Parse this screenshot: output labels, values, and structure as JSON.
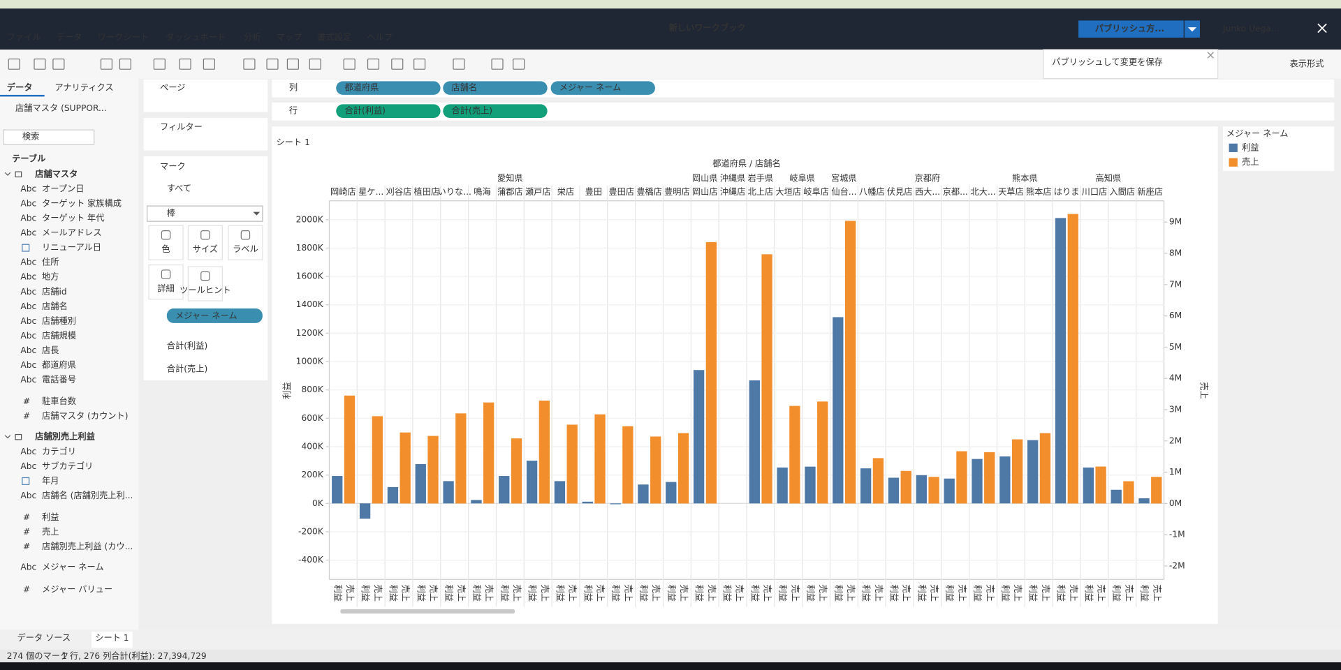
{
  "ui": {
    "menus": [
      "ファイル",
      "データ",
      "ワークシート",
      "ダッシュボード",
      "分析",
      "マップ",
      "書式設定",
      "ヘルプ"
    ],
    "window_title": "新しいワークブック",
    "publish_button": "パブリッシュ方...",
    "user": "Junko Uega...",
    "publish_tooltip": "パブリッシュして変更を保存",
    "show_me": "表示形式",
    "data_tabs": [
      "データ",
      "アナリティクス"
    ],
    "data_source": "店舗マスタ (SUPPOR...",
    "search": "検索",
    "tables_heading": "テーブル",
    "icons": {
      "text": "Abc",
      "number": "#"
    },
    "tables": [
      {
        "name": "店舗マスタ",
        "fields": [
          {
            "label": "オープン日",
            "kind": "text"
          },
          {
            "label": "ターゲット 家族構成",
            "kind": "text"
          },
          {
            "label": "ターゲット 年代",
            "kind": "text"
          },
          {
            "label": "メールアドレス",
            "kind": "text"
          },
          {
            "label": "リニューアル日",
            "kind": "date"
          },
          {
            "label": "住所",
            "kind": "text"
          },
          {
            "label": "地方",
            "kind": "text"
          },
          {
            "label": "店舗id",
            "kind": "text"
          },
          {
            "label": "店舗名",
            "kind": "text"
          },
          {
            "label": "店舗種別",
            "kind": "text"
          },
          {
            "label": "店舗規模",
            "kind": "text"
          },
          {
            "label": "店長",
            "kind": "text"
          },
          {
            "label": "都道府県",
            "kind": "text"
          },
          {
            "label": "電話番号",
            "kind": "text"
          },
          {
            "label": "駐車台数",
            "kind": "number"
          },
          {
            "label": "店舗マスタ (カウント)",
            "kind": "number"
          }
        ]
      },
      {
        "name": "店舗別売上利益",
        "fields": [
          {
            "label": "カテゴリ",
            "kind": "text"
          },
          {
            "label": "サブカテゴリ",
            "kind": "text"
          },
          {
            "label": "年月",
            "kind": "date"
          },
          {
            "label": "店舗名 (店舗別売上利...",
            "kind": "text"
          },
          {
            "label": "利益",
            "kind": "number"
          },
          {
            "label": "売上",
            "kind": "number"
          },
          {
            "label": "店舗別売上利益 (カウ...",
            "kind": "number"
          }
        ]
      }
    ],
    "extra_fields": [
      {
        "label": "メジャー ネーム",
        "kind": "text"
      },
      {
        "label": "メジャー バリュー",
        "kind": "number"
      }
    ],
    "cards": {
      "pages": "ページ",
      "filters": "フィルター",
      "marks": "マーク",
      "all": "すべて",
      "mark_type": "棒",
      "buttons": [
        "色",
        "サイズ",
        "ラベル",
        "詳細",
        "ツールヒント"
      ],
      "marks_pills": [
        "メジャー ネーム",
        "合計(利益)",
        "合計(売上)"
      ]
    },
    "columns_shelf": {
      "label": "列",
      "pills": [
        "都道府県",
        "店舗名",
        "メジャー ネーム"
      ]
    },
    "rows_shelf": {
      "label": "行",
      "pills": [
        "合計(利益)",
        "合計(売上)"
      ]
    },
    "sheet_title": "シート 1",
    "tabs": [
      "データ ソース",
      "シート 1"
    ],
    "status": [
      "274 個のマーク",
      "1 行, 276 列",
      "合計(利益): 27,394,729"
    ]
  },
  "chart_data": {
    "type": "bar",
    "header_title": "都道府県 / 店舗名",
    "legend_title": "メジャー ネーム",
    "y_label": "利益",
    "y2_label": "売上",
    "prefectures": [
      "愛知県",
      null,
      null,
      null,
      null,
      null,
      null,
      null,
      null,
      null,
      null,
      null,
      null,
      "岡山県",
      "沖縄県",
      "岩手県",
      "岐阜県",
      null,
      "宮城県",
      "京都府",
      null,
      null,
      null,
      null,
      "熊本県",
      null,
      "高知県",
      null,
      null,
      null
    ],
    "categories": [
      "岡崎店",
      "星ケ...",
      "刈谷店",
      "植田店",
      "いりな...",
      "鳴海",
      "蒲郡店",
      "瀬戸店",
      "栄店",
      "豊田",
      "豊田店",
      "豊橋店",
      "豊明店",
      "岡山店",
      "沖縄店",
      "北上店",
      "大垣店",
      "岐阜店",
      "仙台...",
      "八幡店",
      "伏見店",
      "西大...",
      "京都...",
      "北大...",
      "天草店",
      "熊本店",
      "はりま",
      "川口店",
      "入間店",
      "新座店"
    ],
    "series": [
      {
        "name": "利益",
        "color": "#4e79a7",
        "values": [
          193000,
          -108000,
          115000,
          277000,
          157000,
          24000,
          193000,
          301000,
          157000,
          12000,
          -6000,
          133000,
          151000,
          940000,
          null,
          867000,
          253000,
          259000,
          1313000,
          247000,
          181000,
          199000,
          175000,
          313000,
          331000,
          446000,
          2012000,
          253000,
          96000,
          36000
        ]
      },
      {
        "name": "売上",
        "color": "#f28e2b",
        "axis": "y2",
        "values": [
          3450000,
          2790000,
          2270000,
          2160000,
          2880000,
          3230000,
          2080000,
          3290000,
          2520000,
          2850000,
          2470000,
          2140000,
          2250000,
          8360000,
          null,
          7970000,
          3120000,
          3260000,
          9040000,
          1450000,
          1040000,
          850000,
          1670000,
          1640000,
          2050000,
          2250000,
          9260000,
          1180000,
          710000,
          850000
        ]
      }
    ],
    "ylim": [
      -536000,
      2133000
    ],
    "yticks": [
      {
        "value": -400000,
        "label": "-400K"
      },
      {
        "value": -200000,
        "label": "-200K"
      },
      {
        "value": 0,
        "label": "0K"
      },
      {
        "value": 200000,
        "label": "200K"
      },
      {
        "value": 400000,
        "label": "400K"
      },
      {
        "value": 600000,
        "label": "600K"
      },
      {
        "value": 800000,
        "label": "800K"
      },
      {
        "value": 1000000,
        "label": "1000K"
      },
      {
        "value": 1200000,
        "label": "1200K"
      },
      {
        "value": 1400000,
        "label": "1400K"
      },
      {
        "value": 1600000,
        "label": "1600K"
      },
      {
        "value": 1800000,
        "label": "1800K"
      },
      {
        "value": 2000000,
        "label": "2000K"
      }
    ],
    "y2lim": [
      -2430000,
      9680000
    ],
    "y2ticks": [
      {
        "value": -2000000,
        "label": "-2M"
      },
      {
        "value": -1000000,
        "label": "-1M"
      },
      {
        "value": 0,
        "label": "0M"
      },
      {
        "value": 1000000,
        "label": "1M"
      },
      {
        "value": 2000000,
        "label": "2M"
      },
      {
        "value": 3000000,
        "label": "3M"
      },
      {
        "value": 4000000,
        "label": "4M"
      },
      {
        "value": 5000000,
        "label": "5M"
      },
      {
        "value": 6000000,
        "label": "6M"
      },
      {
        "value": 7000000,
        "label": "7M"
      },
      {
        "value": 8000000,
        "label": "8M"
      },
      {
        "value": 9000000,
        "label": "9M"
      }
    ],
    "grid": true
  }
}
